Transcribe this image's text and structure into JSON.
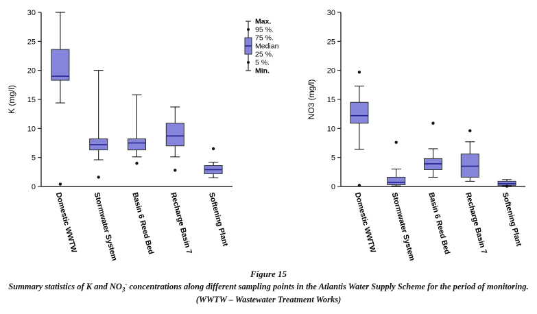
{
  "figure": {
    "caption": {
      "figure_label": "Figure 15",
      "text_pre": "Summary statistics of K and NO",
      "sub": "3",
      "sup": "-",
      "text_post": " concentrations along different sampling points in the Atlantis Water Supply Scheme for the period of monitoring.",
      "credit": "(WWTW – Wastewater Treatment Works)"
    }
  },
  "legend": {
    "items": [
      {
        "label": "Max.",
        "bold": true,
        "marker": "cap"
      },
      {
        "label": "95 %.",
        "bold": false,
        "marker": "dot"
      },
      {
        "label": "75 %.",
        "bold": false,
        "marker": "box-top"
      },
      {
        "label": "Median",
        "bold": false,
        "marker": "median-line"
      },
      {
        "label": "25 %.",
        "bold": false,
        "marker": "box-bottom"
      },
      {
        "label": "5 %.",
        "bold": false,
        "marker": "dot"
      },
      {
        "label": "Min.",
        "bold": true,
        "marker": "cap"
      }
    ]
  },
  "colors": {
    "box_fill": "#8585dc",
    "box_stroke": "#2b2b2b",
    "median": "#22228c",
    "outlier": "#111111",
    "axis": "#000000"
  },
  "chart_data": [
    {
      "type": "boxplot",
      "title": "",
      "ylabel": "K (mg/l)",
      "xlabel": "",
      "ylim": [
        0,
        30
      ],
      "yticks": [
        0,
        5,
        10,
        15,
        20,
        25,
        30
      ],
      "grid": false,
      "categories": [
        "Domestic WWTW",
        "Stormwater System",
        "Basin 6 Reed Bed",
        "Recharge Basin 7",
        "Softening Plant"
      ],
      "boxes": [
        {
          "whisker_low": 14.4,
          "q1": 18.3,
          "median": 19.0,
          "q3": 23.6,
          "whisker_high": 30.0,
          "outliers": [
            0.4
          ]
        },
        {
          "whisker_low": 4.6,
          "q1": 6.3,
          "median": 7.2,
          "q3": 8.2,
          "whisker_high": 20.0,
          "outliers": [
            1.6
          ]
        },
        {
          "whisker_low": 5.1,
          "q1": 6.3,
          "median": 7.5,
          "q3": 8.2,
          "whisker_high": 15.8,
          "outliers": [
            4.0
          ]
        },
        {
          "whisker_low": 5.1,
          "q1": 7.0,
          "median": 8.7,
          "q3": 10.9,
          "whisker_high": 13.7,
          "outliers": [
            2.8
          ]
        },
        {
          "whisker_low": 1.5,
          "q1": 2.2,
          "median": 2.9,
          "q3": 3.6,
          "whisker_high": 4.2,
          "outliers": [
            6.5
          ]
        }
      ]
    },
    {
      "type": "boxplot",
      "title": "",
      "ylabel": "NO3 (mg/l)",
      "xlabel": "",
      "ylim": [
        0,
        30
      ],
      "yticks": [
        0,
        5,
        10,
        15,
        20,
        25,
        30
      ],
      "grid": false,
      "categories": [
        "Domestic WWTW",
        "Stormwater System",
        "Basin 6 Reed Bed",
        "Recharge Basin 7",
        "Softening Plant"
      ],
      "boxes": [
        {
          "whisker_low": 6.4,
          "q1": 10.9,
          "median": 12.2,
          "q3": 14.5,
          "whisker_high": 17.3,
          "outliers": [
            19.7,
            0.2
          ]
        },
        {
          "whisker_low": 0.1,
          "q1": 0.3,
          "median": 0.7,
          "q3": 1.6,
          "whisker_high": 3.0,
          "outliers": [
            7.6
          ]
        },
        {
          "whisker_low": 1.6,
          "q1": 2.9,
          "median": 3.9,
          "q3": 4.8,
          "whisker_high": 6.5,
          "outliers": [
            10.9
          ]
        },
        {
          "whisker_low": 0.9,
          "q1": 1.6,
          "median": 3.5,
          "q3": 5.6,
          "whisker_high": 7.7,
          "outliers": [
            9.6
          ]
        },
        {
          "whisker_low": 0.1,
          "q1": 0.2,
          "median": 0.5,
          "q3": 0.9,
          "whisker_high": 1.2,
          "outliers": [
            0.05
          ]
        }
      ]
    }
  ]
}
